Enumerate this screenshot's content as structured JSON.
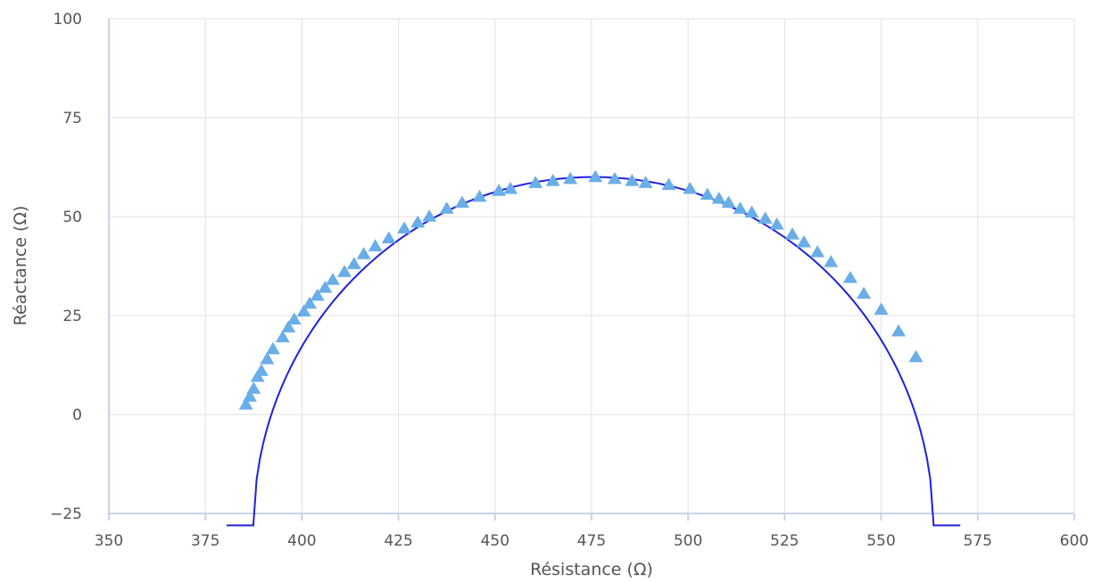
{
  "chart_data": {
    "type": "scatter",
    "xlabel": "Résistance (Ω)",
    "ylabel": "Réactance (Ω)",
    "xlim": [
      350,
      600
    ],
    "ylim": [
      -25,
      100
    ],
    "x_ticks": [
      "350",
      "375",
      "400",
      "425",
      "450",
      "475",
      "500",
      "525",
      "550",
      "575",
      "600"
    ],
    "y_ticks": [
      "100",
      "75",
      "50",
      "25",
      "0",
      "−25"
    ],
    "x_tick_values": [
      350,
      375,
      400,
      425,
      450,
      475,
      500,
      525,
      550,
      575,
      600
    ],
    "y_tick_values": [
      100,
      75,
      50,
      25,
      0,
      -25
    ],
    "grid": true,
    "legend": "none",
    "colors": {
      "curve": "#2020e0",
      "markers": "#6aaee8",
      "grid": "#e1e1e1",
      "axis": "#c8d4e8"
    },
    "series": [
      {
        "kind": "line",
        "center": [
          475.5,
          -28
        ],
        "radius": 88,
        "x_range": [
          380.5,
          570.5
        ]
      },
      {
        "kind": "scatter",
        "marker": "triangle",
        "points": [
          [
            385.5,
            2.5
          ],
          [
            386.5,
            4.5
          ],
          [
            387.5,
            6.5
          ],
          [
            388.5,
            9.5
          ],
          [
            389.5,
            11
          ],
          [
            391,
            14
          ],
          [
            392.5,
            16.5
          ],
          [
            395,
            19.5
          ],
          [
            396.5,
            22
          ],
          [
            398,
            24
          ],
          [
            400.5,
            26
          ],
          [
            402,
            28
          ],
          [
            404,
            30
          ],
          [
            406,
            32
          ],
          [
            408,
            34
          ],
          [
            411,
            36
          ],
          [
            413.5,
            38
          ],
          [
            416,
            40.5
          ],
          [
            419,
            42.5
          ],
          [
            422.5,
            44.5
          ],
          [
            426.5,
            47
          ],
          [
            430,
            48.5
          ],
          [
            433,
            50
          ],
          [
            437.5,
            52
          ],
          [
            441.5,
            53.5
          ],
          [
            446,
            55
          ],
          [
            451,
            56.5
          ],
          [
            454,
            57
          ],
          [
            460.5,
            58.5
          ],
          [
            465,
            59
          ],
          [
            469.5,
            59.5
          ],
          [
            476,
            60
          ],
          [
            481,
            59.5
          ],
          [
            485.5,
            59
          ],
          [
            489,
            58.5
          ],
          [
            495,
            58
          ],
          [
            500.5,
            57
          ],
          [
            505,
            55.5
          ],
          [
            508,
            54.5
          ],
          [
            510.5,
            53.5
          ],
          [
            513.5,
            52
          ],
          [
            516.5,
            51
          ],
          [
            520,
            49.5
          ],
          [
            523,
            48
          ],
          [
            527,
            45.5
          ],
          [
            530,
            43.5
          ],
          [
            533.5,
            41
          ],
          [
            537,
            38.5
          ],
          [
            542,
            34.5
          ],
          [
            545.5,
            30.5
          ],
          [
            550,
            26.5
          ],
          [
            554.5,
            21
          ],
          [
            559,
            14.5
          ]
        ]
      }
    ]
  }
}
